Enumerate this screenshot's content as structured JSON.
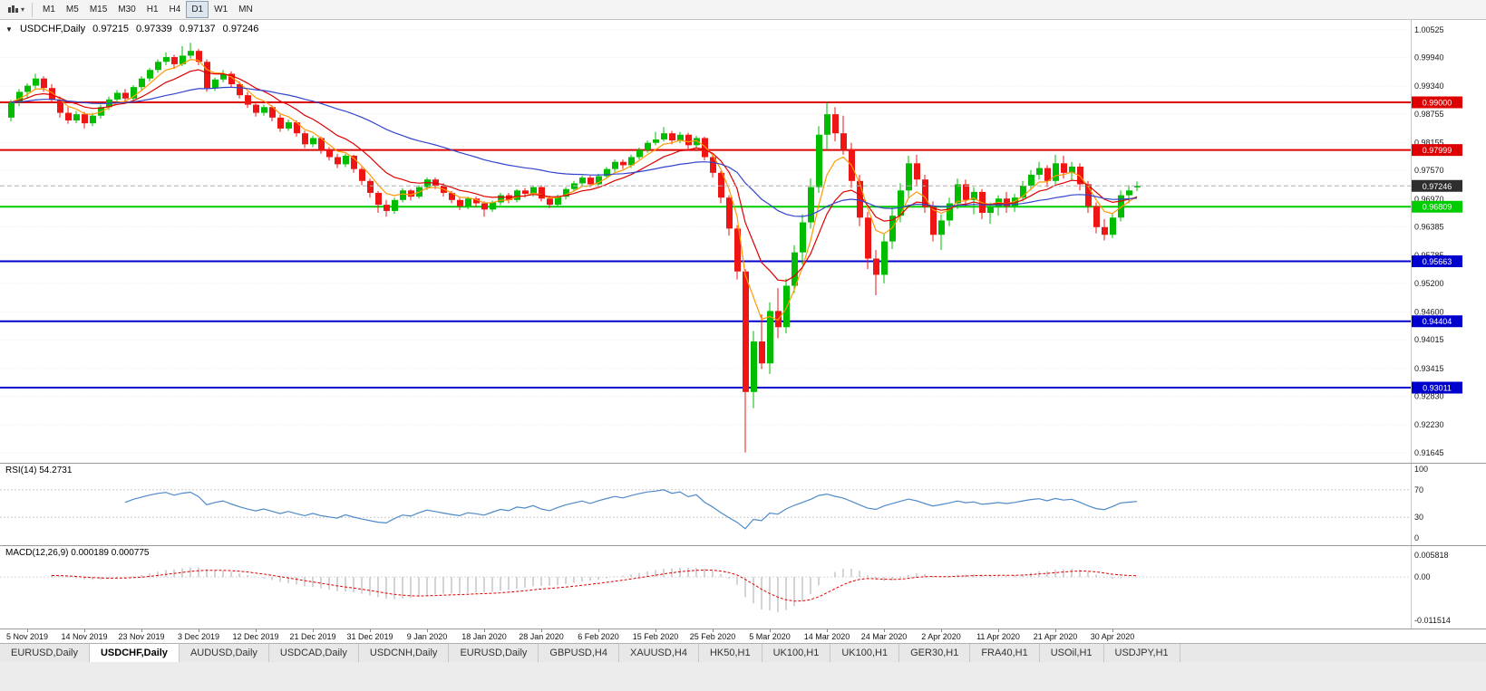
{
  "toolbar": {
    "timeframes": [
      "M1",
      "M5",
      "M15",
      "M30",
      "H1",
      "H4",
      "D1",
      "W1",
      "MN"
    ],
    "active_timeframe": "D1"
  },
  "chart_header": {
    "symbol_period": "USDCHF,Daily",
    "open": "0.97215",
    "high": "0.97339",
    "low": "0.97137",
    "close": "0.97246"
  },
  "price_axis": {
    "ticks": [
      "1.00525",
      "0.99940",
      "0.99340",
      "0.98755",
      "0.98155",
      "0.97570",
      "0.96970",
      "0.96385",
      "0.95785",
      "0.95200",
      "0.94600",
      "0.94015",
      "0.93415",
      "0.92830",
      "0.92230",
      "0.91645"
    ]
  },
  "hlines": [
    {
      "price": 0.99,
      "label": "0.99000",
      "color": "#dd0000",
      "width": 2
    },
    {
      "price": 0.97999,
      "label": "0.97999",
      "color": "#dd0000",
      "width": 2
    },
    {
      "price": 0.96809,
      "label": "0.96809",
      "color": "#00cc00",
      "width": 2
    },
    {
      "price": 0.95663,
      "label": "0.95663",
      "color": "#0000cc",
      "width": 2
    },
    {
      "price": 0.94404,
      "label": "0.94404",
      "color": "#0000cc",
      "width": 2
    },
    {
      "price": 0.93011,
      "label": "0.93011",
      "color": "#0000cc",
      "width": 2
    }
  ],
  "current_price": {
    "value": 0.97246,
    "label": "0.97246",
    "box_color": "#2e2e2e",
    "line_color": "#b0b0b0"
  },
  "indicators": {
    "rsi": {
      "label": "RSI(14) 54.2731",
      "period": 14,
      "color": "#4f8ac9",
      "levels": [
        70,
        30
      ],
      "ticks": [
        {
          "v": 100,
          "label": "100"
        },
        {
          "v": 70,
          "label": "70"
        },
        {
          "v": 30,
          "label": "30"
        },
        {
          "v": 0,
          "label": "0"
        }
      ]
    },
    "macd": {
      "label": "MACD(12,26,9) 0.000189 0.000775",
      "fast": 12,
      "slow": 26,
      "signal_period": 9,
      "hist_color": "#a8a8a8",
      "signal_color": "#e00000",
      "range": {
        "max": 0.005818,
        "min": -0.011514
      },
      "ticks": [
        {
          "v": 0.005818,
          "label": "0.005818"
        },
        {
          "v": 0,
          "label": "0.00"
        },
        {
          "v": -0.011514,
          "label": "-0.011514"
        }
      ]
    }
  },
  "date_axis": {
    "labels": [
      "5 Nov 2019",
      "14 Nov 2019",
      "23 Nov 2019",
      "3 Dec 2019",
      "12 Dec 2019",
      "21 Dec 2019",
      "31 Dec 2019",
      "9 Jan 2020",
      "18 Jan 2020",
      "28 Jan 2020",
      "6 Feb 2020",
      "15 Feb 2020",
      "25 Feb 2020",
      "5 Mar 2020",
      "14 Mar 2020",
      "24 Mar 2020",
      "2 Apr 2020",
      "11 Apr 2020",
      "21 Apr 2020",
      "30 Apr 2020"
    ],
    "candle_indices": [
      2,
      9,
      16,
      23,
      30,
      37,
      44,
      51,
      58,
      65,
      72,
      79,
      86,
      93,
      100,
      107,
      114,
      121,
      128,
      135
    ]
  },
  "tabs": {
    "items": [
      "EURUSD,Daily",
      "USDCHF,Daily",
      "AUDUSD,Daily",
      "USDCAD,Daily",
      "USDCNH,Daily",
      "EURUSD,Daily",
      "GBPUSD,H4",
      "XAUUSD,H4",
      "HK50,H1",
      "UK100,H1",
      "UK100,H1",
      "GER30,H1",
      "FRA40,H1",
      "USOil,H1",
      "USDJPY,H1"
    ],
    "active_index": 1
  },
  "chart_data": {
    "type": "candlestick",
    "symbol": "USDCHF",
    "period": "Daily",
    "up_color": "#00bd00",
    "down_color": "#ee1515",
    "moving_averages": [
      {
        "period": 5,
        "type": "ema",
        "color": "#ff9900"
      },
      {
        "period": 11,
        "type": "ema",
        "color": "#e00000"
      },
      {
        "period": 40,
        "type": "ema",
        "color": "#3344cc"
      }
    ],
    "candles": [
      [
        0.9868,
        0.9905,
        0.986,
        0.99
      ],
      [
        0.99,
        0.9928,
        0.9892,
        0.9922
      ],
      [
        0.9922,
        0.994,
        0.991,
        0.9935
      ],
      [
        0.9935,
        0.996,
        0.9928,
        0.995
      ],
      [
        0.995,
        0.9955,
        0.9922,
        0.993
      ],
      [
        0.993,
        0.9938,
        0.9898,
        0.9905
      ],
      [
        0.9905,
        0.9912,
        0.9868,
        0.9878
      ],
      [
        0.9878,
        0.989,
        0.9855,
        0.9862
      ],
      [
        0.9862,
        0.9882,
        0.9856,
        0.9875
      ],
      [
        0.9875,
        0.988,
        0.9845,
        0.9856
      ],
      [
        0.9856,
        0.9878,
        0.985,
        0.9872
      ],
      [
        0.9872,
        0.9895,
        0.9866,
        0.989
      ],
      [
        0.989,
        0.9912,
        0.9884,
        0.9906
      ],
      [
        0.9906,
        0.9926,
        0.99,
        0.992
      ],
      [
        0.992,
        0.9928,
        0.9898,
        0.9908
      ],
      [
        0.9908,
        0.9936,
        0.9904,
        0.9932
      ],
      [
        0.9932,
        0.9955,
        0.9926,
        0.995
      ],
      [
        0.995,
        0.9972,
        0.9944,
        0.9968
      ],
      [
        0.9968,
        0.999,
        0.9962,
        0.9985
      ],
      [
        0.9985,
        1.0005,
        0.9978,
        0.9995
      ],
      [
        0.9995,
        1.0,
        0.997,
        0.998
      ],
      [
        0.998,
        1.0018,
        0.9976,
        0.9998
      ],
      [
        0.9998,
        1.0025,
        0.9992,
        1.0008
      ],
      [
        1.0008,
        1.0012,
        0.9978,
        0.9985
      ],
      [
        0.9985,
        0.999,
        0.9922,
        0.993
      ],
      [
        0.993,
        0.9952,
        0.9924,
        0.9948
      ],
      [
        0.9948,
        0.9968,
        0.9942,
        0.996
      ],
      [
        0.996,
        0.9965,
        0.9932,
        0.9938
      ],
      [
        0.9938,
        0.9944,
        0.9908,
        0.9915
      ],
      [
        0.9915,
        0.9922,
        0.9888,
        0.9895
      ],
      [
        0.9895,
        0.9902,
        0.987,
        0.9878
      ],
      [
        0.9878,
        0.9895,
        0.9872,
        0.989
      ],
      [
        0.989,
        0.9894,
        0.986,
        0.9868
      ],
      [
        0.9868,
        0.9874,
        0.9838,
        0.9845
      ],
      [
        0.9845,
        0.9864,
        0.984,
        0.9858
      ],
      [
        0.9858,
        0.9862,
        0.9828,
        0.9835
      ],
      [
        0.9835,
        0.984,
        0.9804,
        0.9812
      ],
      [
        0.9812,
        0.983,
        0.9806,
        0.9825
      ],
      [
        0.9825,
        0.9828,
        0.9792,
        0.98
      ],
      [
        0.98,
        0.9806,
        0.9778,
        0.9785
      ],
      [
        0.9785,
        0.9792,
        0.9762,
        0.977
      ],
      [
        0.977,
        0.9792,
        0.9764,
        0.9788
      ],
      [
        0.9788,
        0.979,
        0.9752,
        0.976
      ],
      [
        0.976,
        0.9764,
        0.9726,
        0.9735
      ],
      [
        0.9735,
        0.974,
        0.97,
        0.971
      ],
      [
        0.971,
        0.9714,
        0.9668,
        0.9685
      ],
      [
        0.9685,
        0.9695,
        0.966,
        0.9672
      ],
      [
        0.9672,
        0.97,
        0.9666,
        0.9695
      ],
      [
        0.9695,
        0.972,
        0.969,
        0.9715
      ],
      [
        0.9715,
        0.9718,
        0.9694,
        0.9702
      ],
      [
        0.9702,
        0.9726,
        0.9698,
        0.9722
      ],
      [
        0.9722,
        0.9742,
        0.9716,
        0.9738
      ],
      [
        0.9738,
        0.9742,
        0.9718,
        0.9725
      ],
      [
        0.9725,
        0.973,
        0.9702,
        0.971
      ],
      [
        0.971,
        0.9714,
        0.9688,
        0.9695
      ],
      [
        0.9695,
        0.97,
        0.9674,
        0.9682
      ],
      [
        0.9682,
        0.9702,
        0.9676,
        0.9698
      ],
      [
        0.9698,
        0.9702,
        0.968,
        0.9688
      ],
      [
        0.9688,
        0.9692,
        0.966,
        0.9675
      ],
      [
        0.9675,
        0.9694,
        0.967,
        0.969
      ],
      [
        0.969,
        0.971,
        0.9684,
        0.9705
      ],
      [
        0.9705,
        0.971,
        0.9688,
        0.9695
      ],
      [
        0.9695,
        0.9718,
        0.969,
        0.9715
      ],
      [
        0.9715,
        0.972,
        0.97,
        0.9708
      ],
      [
        0.9708,
        0.9726,
        0.9702,
        0.9722
      ],
      [
        0.9722,
        0.9726,
        0.9692,
        0.9698
      ],
      [
        0.9698,
        0.9704,
        0.9678,
        0.9685
      ],
      [
        0.9685,
        0.9706,
        0.968,
        0.9702
      ],
      [
        0.9702,
        0.9722,
        0.9696,
        0.9718
      ],
      [
        0.9718,
        0.9735,
        0.9712,
        0.973
      ],
      [
        0.973,
        0.9746,
        0.9724,
        0.9742
      ],
      [
        0.9742,
        0.9746,
        0.9722,
        0.9728
      ],
      [
        0.9728,
        0.975,
        0.9724,
        0.9745
      ],
      [
        0.9745,
        0.9764,
        0.974,
        0.976
      ],
      [
        0.976,
        0.978,
        0.9754,
        0.9775
      ],
      [
        0.9775,
        0.978,
        0.976,
        0.9768
      ],
      [
        0.9768,
        0.979,
        0.9762,
        0.9785
      ],
      [
        0.9785,
        0.9805,
        0.978,
        0.98
      ],
      [
        0.98,
        0.982,
        0.9794,
        0.9815
      ],
      [
        0.9815,
        0.9838,
        0.981,
        0.9822
      ],
      [
        0.9822,
        0.9848,
        0.9818,
        0.9835
      ],
      [
        0.9835,
        0.984,
        0.9812,
        0.982
      ],
      [
        0.982,
        0.9838,
        0.9814,
        0.9832
      ],
      [
        0.9832,
        0.9836,
        0.9802,
        0.981
      ],
      [
        0.981,
        0.983,
        0.9804,
        0.9825
      ],
      [
        0.9825,
        0.9828,
        0.9778,
        0.9785
      ],
      [
        0.9785,
        0.979,
        0.9742,
        0.9752
      ],
      [
        0.9752,
        0.9756,
        0.9688,
        0.97
      ],
      [
        0.97,
        0.9705,
        0.962,
        0.9635
      ],
      [
        0.9635,
        0.9642,
        0.9528,
        0.9545
      ],
      [
        0.9545,
        0.955,
        0.9165,
        0.9292
      ],
      [
        0.9292,
        0.942,
        0.9258,
        0.9398
      ],
      [
        0.9398,
        0.9455,
        0.934,
        0.9352
      ],
      [
        0.9352,
        0.948,
        0.933,
        0.9462
      ],
      [
        0.9462,
        0.951,
        0.9405,
        0.9428
      ],
      [
        0.9428,
        0.953,
        0.9415,
        0.9515
      ],
      [
        0.9515,
        0.96,
        0.95,
        0.9585
      ],
      [
        0.9585,
        0.9665,
        0.956,
        0.9648
      ],
      [
        0.9648,
        0.974,
        0.9635,
        0.9722
      ],
      [
        0.9722,
        0.985,
        0.971,
        0.9832
      ],
      [
        0.9832,
        0.9901,
        0.98,
        0.9875
      ],
      [
        0.9875,
        0.989,
        0.9818,
        0.9835
      ],
      [
        0.9835,
        0.9872,
        0.979,
        0.9802
      ],
      [
        0.9802,
        0.9815,
        0.972,
        0.9735
      ],
      [
        0.9735,
        0.9748,
        0.964,
        0.9658
      ],
      [
        0.9658,
        0.967,
        0.955,
        0.9572
      ],
      [
        0.9572,
        0.959,
        0.9495,
        0.9538
      ],
      [
        0.9538,
        0.9625,
        0.952,
        0.9608
      ],
      [
        0.9608,
        0.968,
        0.9592,
        0.9662
      ],
      [
        0.9662,
        0.973,
        0.9648,
        0.9715
      ],
      [
        0.9715,
        0.9788,
        0.97,
        0.9772
      ],
      [
        0.9772,
        0.979,
        0.9724,
        0.9738
      ],
      [
        0.9738,
        0.9748,
        0.9668,
        0.968
      ],
      [
        0.968,
        0.9692,
        0.9608,
        0.9622
      ],
      [
        0.9622,
        0.9665,
        0.959,
        0.9652
      ],
      [
        0.9652,
        0.97,
        0.964,
        0.9688
      ],
      [
        0.9688,
        0.974,
        0.9676,
        0.9728
      ],
      [
        0.9728,
        0.9738,
        0.9682,
        0.9695
      ],
      [
        0.9695,
        0.9722,
        0.9665,
        0.9712
      ],
      [
        0.9712,
        0.9718,
        0.9655,
        0.9668
      ],
      [
        0.9668,
        0.969,
        0.9645,
        0.968
      ],
      [
        0.968,
        0.9705,
        0.9662,
        0.9698
      ],
      [
        0.9698,
        0.9712,
        0.9668,
        0.9682
      ],
      [
        0.9682,
        0.9708,
        0.967,
        0.97
      ],
      [
        0.97,
        0.9735,
        0.9692,
        0.9725
      ],
      [
        0.9725,
        0.9758,
        0.9715,
        0.9748
      ],
      [
        0.9748,
        0.9775,
        0.9738,
        0.9762
      ],
      [
        0.9762,
        0.9768,
        0.9722,
        0.9735
      ],
      [
        0.9735,
        0.979,
        0.9728,
        0.9772
      ],
      [
        0.9772,
        0.9788,
        0.974,
        0.9752
      ],
      [
        0.9752,
        0.9775,
        0.9735,
        0.9765
      ],
      [
        0.9765,
        0.9772,
        0.9715,
        0.9728
      ],
      [
        0.9728,
        0.9735,
        0.9668,
        0.9682
      ],
      [
        0.9682,
        0.969,
        0.9625,
        0.9638
      ],
      [
        0.9638,
        0.9655,
        0.961,
        0.9622
      ],
      [
        0.9622,
        0.9668,
        0.9615,
        0.9658
      ],
      [
        0.9658,
        0.9715,
        0.965,
        0.9705
      ],
      [
        0.9705,
        0.9726,
        0.9688,
        0.9715
      ],
      [
        0.97215,
        0.97339,
        0.97137,
        0.97246
      ]
    ]
  }
}
